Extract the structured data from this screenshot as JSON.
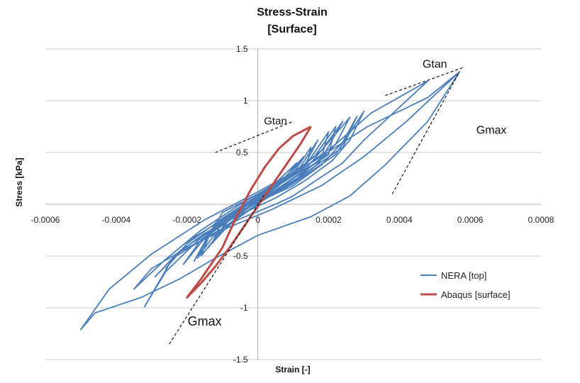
{
  "chart_data": {
    "type": "line",
    "title": "Stress-Strain",
    "subtitle": "[Surface]",
    "xlabel": "Strain [-]",
    "ylabel": "Stress [kPa]",
    "xlim": [
      -0.0006,
      0.0008
    ],
    "ylim": [
      -1.5,
      1.5
    ],
    "xticks": [
      -0.0006,
      -0.0004,
      -0.0002,
      0,
      0.0002,
      0.0004,
      0.0006,
      0.0008
    ],
    "xtick_labels": [
      "-0.0006",
      "-0.0004",
      "-0.0002",
      "0",
      "0.0002",
      "0.0004",
      "0.0006",
      "0.0008"
    ],
    "yticks": [
      -1.5,
      -1,
      -0.5,
      0,
      0.5,
      1,
      1.5
    ],
    "ytick_labels": [
      "-1.5",
      "-1",
      "-0.5",
      "0",
      "0.5",
      "1",
      "1.5"
    ],
    "grid": "horizontal",
    "legend_position": "bottom-right",
    "series": [
      {
        "name": "NERA [top]",
        "color": "#4A7EBB",
        "x": [
          0.00057,
          0.00048,
          0.00036,
          0.00026,
          0.00015,
          0.0,
          -0.00012,
          -0.00022,
          -0.00033,
          -0.00046,
          -0.0005,
          -0.00042,
          -0.0003,
          -0.00015,
          0.0,
          0.00016,
          0.00031,
          0.00048,
          0.00057,
          0.00042,
          0.0003,
          0.00018,
          4e-05,
          -8e-05,
          -0.0002,
          -0.0003,
          -0.00035,
          -0.00026,
          -0.00016,
          -4e-05,
          0.0001,
          0.00022,
          0.00032,
          0.00048,
          0.0003,
          0.00024,
          0.00016,
          0.0001,
          5e-05,
          -5e-05,
          -0.00015,
          -0.00024,
          -0.00032,
          -0.00026,
          -0.00016,
          -4e-05,
          0.0001,
          0.00022,
          0.0003,
          0.00026,
          0.00021,
          0.00013,
          5e-05,
          -5e-05,
          -0.00015,
          -0.00023,
          -0.00029,
          -0.00022,
          -0.00011,
          0.0,
          0.00012,
          0.00024,
          0.00028,
          0.00024,
          0.00018,
          0.0001,
          0.0,
          -0.0001,
          -0.00019,
          -0.00026,
          -0.0002,
          -0.0001,
          2e-05,
          0.00014,
          0.00026,
          0.00022,
          0.00016,
          8e-05,
          -2e-05,
          -0.00012,
          -0.00021,
          -0.00016,
          -6e-05,
          6e-05,
          0.00018,
          0.00024,
          0.00018,
          0.0001,
          0.0,
          -0.0001,
          -0.00018,
          -0.00014,
          -4e-05,
          8e-05,
          0.0002,
          0.00022,
          0.00016,
          7e-05,
          -3e-05,
          -0.00012,
          -0.00017,
          -0.00012,
          -2e-05,
          0.0001,
          0.00018,
          0.0002,
          0.00014,
          5e-05,
          -5e-05,
          -0.00013,
          -0.00016,
          -0.0001,
          0.0,
          0.00012,
          0.00017,
          0.00012,
          3e-05,
          -7e-05,
          -0.00014,
          -9e-05,
          2e-05,
          0.00014,
          0.00015,
          0.0001,
          0.0,
          -0.0001,
          -0.00013,
          -6e-05,
          5e-05,
          0.00013,
          8e-05,
          -2e-05,
          -0.00011,
          -8e-05,
          3e-05,
          0.00011,
          6e-05,
          -4e-05,
          -9e-05
        ],
        "y": [
          1.28,
          0.8,
          0.38,
          0.08,
          -0.12,
          -0.3,
          -0.52,
          -0.72,
          -0.9,
          -1.05,
          -1.21,
          -0.82,
          -0.48,
          -0.15,
          0.12,
          0.42,
          0.75,
          1.03,
          1.28,
          0.8,
          0.46,
          0.18,
          -0.05,
          -0.22,
          -0.42,
          -0.62,
          -0.82,
          -0.53,
          -0.25,
          0.02,
          0.28,
          0.58,
          0.88,
          1.19,
          0.62,
          0.4,
          0.22,
          0.08,
          0.0,
          -0.14,
          -0.33,
          -0.52,
          -0.99,
          -0.65,
          -0.32,
          -0.05,
          0.2,
          0.48,
          0.9,
          0.62,
          0.42,
          0.22,
          0.06,
          -0.1,
          -0.28,
          -0.48,
          -0.7,
          -0.45,
          -0.2,
          0.02,
          0.27,
          0.55,
          0.85,
          0.6,
          0.38,
          0.18,
          0.02,
          -0.15,
          -0.34,
          -0.62,
          -0.38,
          -0.14,
          0.1,
          0.36,
          0.84,
          0.58,
          0.36,
          0.16,
          -0.02,
          -0.2,
          -0.58,
          -0.34,
          -0.1,
          0.16,
          0.44,
          0.8,
          0.52,
          0.3,
          0.1,
          -0.08,
          -0.55,
          -0.3,
          -0.06,
          0.2,
          0.48,
          0.75,
          0.46,
          0.22,
          0.02,
          -0.18,
          -0.52,
          -0.28,
          -0.04,
          0.22,
          0.45,
          0.7,
          0.4,
          0.16,
          -0.04,
          -0.24,
          -0.5,
          -0.24,
          0.0,
          0.3,
          0.62,
          0.36,
          0.12,
          -0.1,
          -0.42,
          -0.18,
          0.08,
          0.4,
          0.55,
          0.3,
          0.06,
          -0.16,
          -0.38,
          -0.12,
          0.16,
          0.46,
          0.24,
          0.0,
          -0.3,
          -0.1,
          0.14,
          0.4,
          0.18,
          -0.06,
          -0.24
        ]
      },
      {
        "name": "Abaqus [surface]",
        "color": "#BE4B48",
        "x": [
          0.00015,
          0.00012,
          8e-05,
          4e-05,
          0.0,
          -4e-05,
          -8e-05,
          -0.00012,
          -0.00016,
          -0.0002,
          -0.00016,
          -0.0001,
          -6e-05,
          -2e-05,
          2e-05,
          6e-05,
          0.0001,
          0.00015
        ],
        "y": [
          0.75,
          0.58,
          0.38,
          0.18,
          -0.02,
          -0.22,
          -0.42,
          -0.6,
          -0.76,
          -0.9,
          -0.72,
          -0.42,
          -0.12,
          0.14,
          0.36,
          0.54,
          0.66,
          0.75
        ]
      }
    ],
    "annotations": [
      {
        "text": "Gtan",
        "x": 0.0005,
        "y": 1.32,
        "size": 16
      },
      {
        "text": "Gmax",
        "x": 0.00066,
        "y": 0.68,
        "size": 16
      },
      {
        "text": "Gtan",
        "x": 5e-05,
        "y": 0.77,
        "size": 15
      },
      {
        "text": "Gmax",
        "x": -0.00015,
        "y": -1.17,
        "size": 18
      }
    ],
    "tangent_lines": [
      {
        "x": [
          0.00036,
          0.00058
        ],
        "y": [
          1.05,
          1.32
        ]
      },
      {
        "x": [
          0.00038,
          0.00057
        ],
        "y": [
          0.1,
          1.28
        ]
      },
      {
        "x": [
          -0.00012,
          0.0001
        ],
        "y": [
          0.5,
          0.8
        ]
      },
      {
        "x": [
          -0.00025,
          2e-05
        ],
        "y": [
          -1.35,
          0.1
        ]
      }
    ]
  }
}
